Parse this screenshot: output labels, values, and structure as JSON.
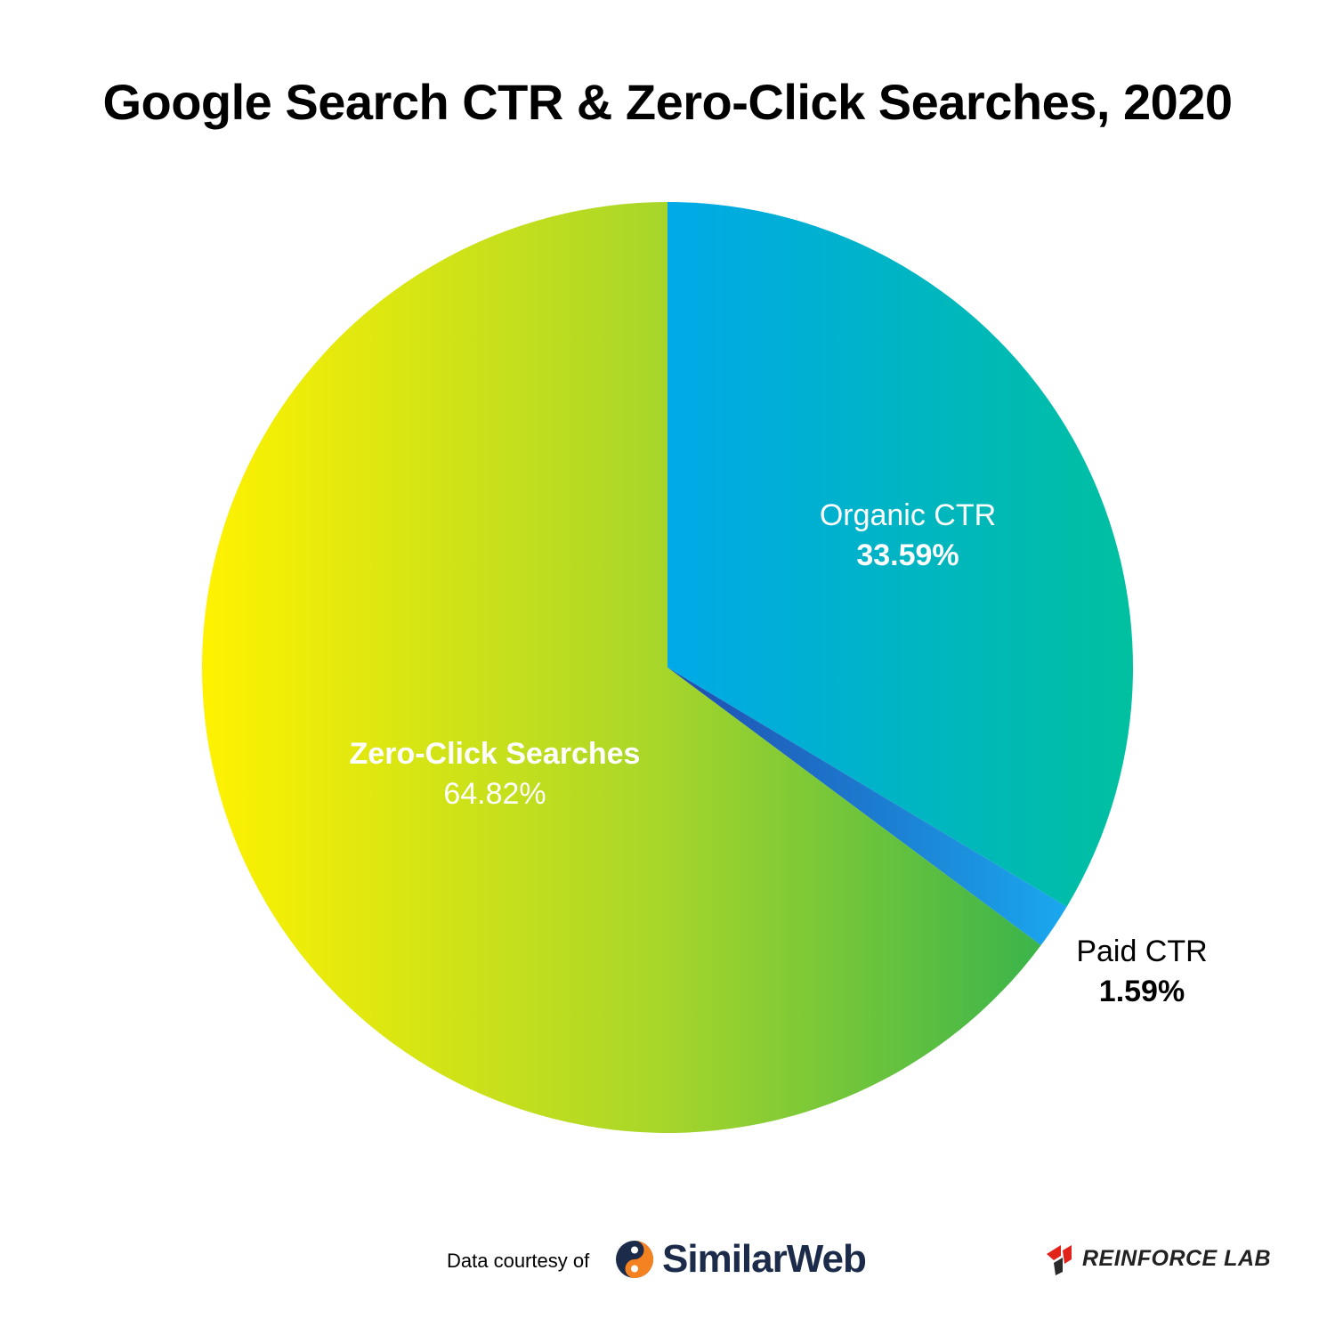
{
  "chart_data": {
    "type": "pie",
    "title": "Google Search CTR & Zero-Click Searches, 2020",
    "slices": [
      {
        "label": "Organic CTR",
        "value": 33.59,
        "value_text": "33.59%",
        "color_start": "#00a9e8",
        "color_end": "#00c0a0",
        "label_color": "#ffffff"
      },
      {
        "label": "Paid CTR",
        "value": 1.59,
        "value_text": "1.59%",
        "color_start": "#1f4fb0",
        "color_end": "#1aa8ee",
        "label_color": "#000000"
      },
      {
        "label": "Zero-Click Searches",
        "value": 64.82,
        "value_text": "64.82%",
        "color_start": "#fff200",
        "color_end": "#3db54a",
        "label_color": "#ffffff"
      }
    ]
  },
  "footer": {
    "credit_text": "Data courtesy of",
    "source_logo_text": "SimilarWeb",
    "brand_logo_text": "REINFORCE LAB"
  },
  "colors": {
    "similarweb_orange": "#f58220",
    "similarweb_navy": "#1c2b4a",
    "reinforce_red": "#e2231a"
  }
}
